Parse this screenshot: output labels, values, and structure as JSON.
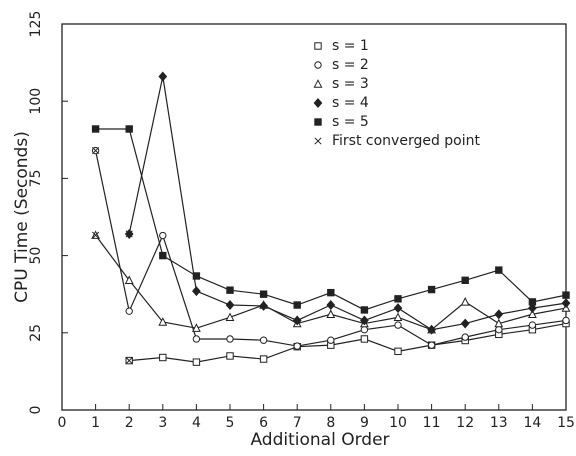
{
  "chart_data": {
    "type": "line",
    "xlabel": "Additional Order",
    "ylabel": "CPU Time (Seconds)",
    "xlim": [
      0,
      15
    ],
    "xticks": [
      0,
      1,
      2,
      3,
      4,
      5,
      6,
      7,
      8,
      9,
      10,
      11,
      12,
      13,
      14,
      15
    ],
    "ylim": [
      0,
      125
    ],
    "yticks": [
      0,
      25,
      50,
      75,
      100,
      125
    ],
    "legend": "upper right",
    "color": "#222222",
    "series": [
      {
        "name": "s = 1",
        "marker": "square-open",
        "x": [
          2,
          3,
          4,
          5,
          6,
          7,
          8,
          9,
          10,
          11,
          12,
          13,
          14,
          15
        ],
        "values": [
          16,
          17,
          15.5,
          17.5,
          16.5,
          20.5,
          21,
          23,
          19,
          21,
          22.5,
          24.5,
          26,
          28
        ]
      },
      {
        "name": "s = 2",
        "marker": "circle-open",
        "x": [
          1,
          2,
          3,
          4,
          5,
          6,
          7,
          8,
          9,
          10,
          11,
          12,
          13,
          14,
          15
        ],
        "values": [
          84,
          32,
          56.5,
          23,
          23,
          22.6,
          20.7,
          22.6,
          26,
          27.5,
          21,
          23.6,
          26,
          27.5,
          29
        ]
      },
      {
        "name": "s = 3",
        "marker": "triangle-open",
        "x": [
          1,
          2,
          3,
          4,
          5,
          6,
          7,
          8,
          9,
          10,
          11,
          12,
          13,
          14,
          15
        ],
        "values": [
          56.6,
          42,
          28.5,
          26.5,
          30,
          34,
          28,
          31,
          28,
          30,
          26,
          35,
          28,
          31,
          33
        ]
      },
      {
        "name": "s = 4",
        "marker": "diamond-filled",
        "x": [
          2,
          3,
          4,
          5,
          6,
          7,
          8,
          9,
          10,
          11,
          12,
          13,
          14,
          15
        ],
        "values": [
          57,
          108,
          38.5,
          34,
          33.7,
          29,
          34,
          29,
          33,
          26,
          28,
          31,
          33,
          34.6
        ]
      },
      {
        "name": "s = 5",
        "marker": "square-filled",
        "x": [
          1,
          2,
          3,
          4,
          5,
          6,
          7,
          8,
          9,
          10,
          11,
          12,
          13,
          14,
          15
        ],
        "values": [
          91,
          91,
          50,
          43.4,
          38.8,
          37.5,
          34,
          38,
          32.4,
          36,
          39,
          42,
          45.3,
          35,
          37.2
        ]
      },
      {
        "name": "First converged point",
        "marker": "cross",
        "line": false,
        "x": [
          1,
          1,
          1,
          2,
          2
        ],
        "values": [
          91,
          84,
          56.6,
          57,
          16
        ]
      }
    ]
  }
}
